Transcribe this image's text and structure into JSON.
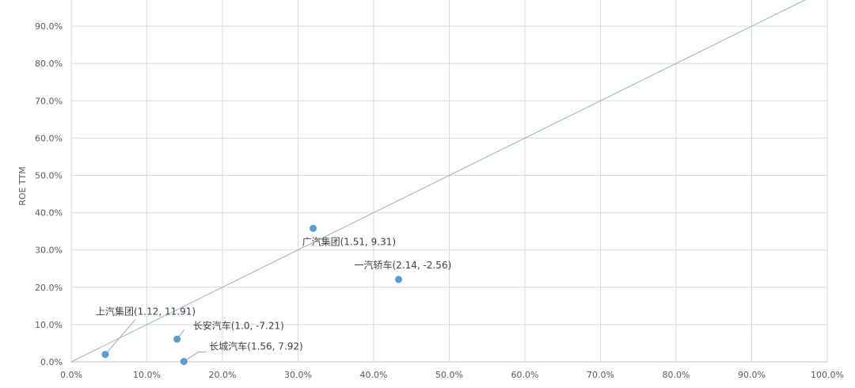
{
  "chart_data": {
    "type": "scatter",
    "ylabel": "ROE TTM",
    "xlim": [
      0,
      100
    ],
    "ylim": [
      0,
      100
    ],
    "x_ticks": [
      "0.0%",
      "10.0%",
      "20.0%",
      "30.0%",
      "40.0%",
      "50.0%",
      "60.0%",
      "70.0%",
      "80.0%",
      "90.0%",
      "100.0%"
    ],
    "y_ticks": [
      "0.0%",
      "10.0%",
      "20.0%",
      "30.0%",
      "40.0%",
      "50.0%",
      "60.0%",
      "70.0%",
      "80.0%",
      "90.0%"
    ],
    "grid": true,
    "point_color": "#5B9BD5",
    "line_color": "#8FB3C8",
    "reference_line": {
      "from": [
        0,
        0
      ],
      "to": [
        100,
        100
      ]
    },
    "points": [
      {
        "label": "广汽集团(1.51, 9.31)",
        "x": 32.0,
        "y": 35.8
      },
      {
        "label": "一汽轿车(2.14, -2.56)",
        "x": 43.3,
        "y": 22.1
      },
      {
        "label": "上汽集团(1.12, 11.91)",
        "x": 4.5,
        "y": 2.0
      },
      {
        "label": "长安汽车(1.0, -7.21)",
        "x": 14.0,
        "y": 6.1
      },
      {
        "label": "长城汽车(1.56, 7.92)",
        "x": 14.9,
        "y": 0.1
      }
    ]
  }
}
